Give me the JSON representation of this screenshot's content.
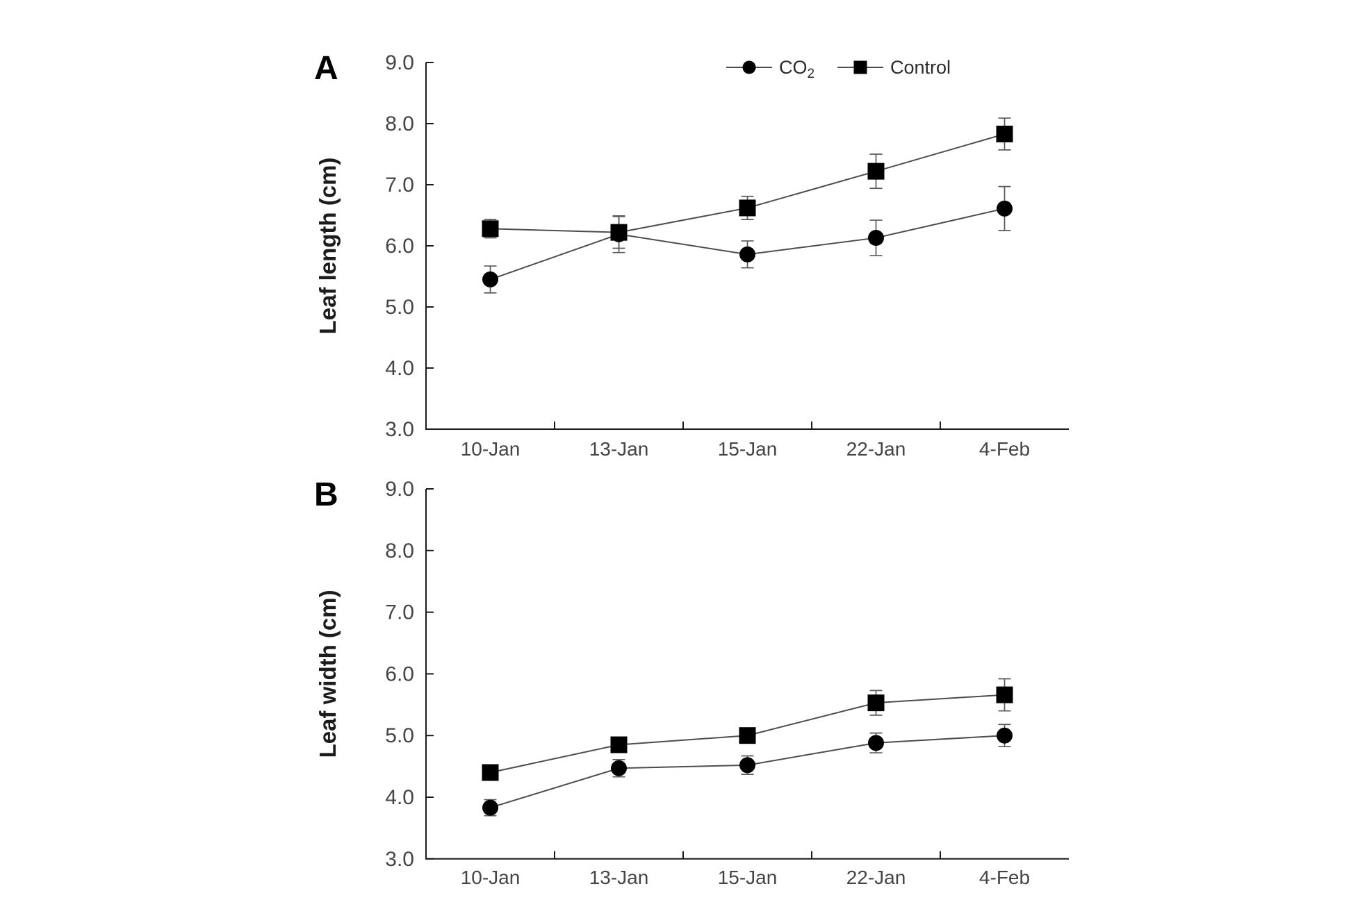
{
  "figure": {
    "background": "#ffffff",
    "axis_color": "#1a1a1a",
    "tick_text_color": "#454545",
    "label_text_color": "#1c1c1c",
    "series_line_color": "#4d4d4d",
    "marker_color": "#000000",
    "error_bar_color": "#595959"
  },
  "chart_data": [
    {
      "type": "line",
      "panel_label": "A",
      "ylabel": "Leaf length (cm)",
      "xlabel": "",
      "categories": [
        "10-Jan",
        "13-Jan",
        "15-Jan",
        "22-Jan",
        "4-Feb"
      ],
      "ylim": [
        3.0,
        9.0
      ],
      "ytick_step": 1.0,
      "ytick_labels": [
        "3.0",
        "4.0",
        "5.0",
        "6.0",
        "7.0",
        "8.0",
        "9.0"
      ],
      "grid": false,
      "legend": {
        "position": "top-inside",
        "entries": [
          {
            "text": "CO",
            "subscript": "2",
            "marker": "circle"
          },
          {
            "text": "Control",
            "subscript": "",
            "marker": "square"
          }
        ]
      },
      "series": [
        {
          "name": "CO2",
          "marker": "circle",
          "values": [
            5.45,
            6.19,
            5.86,
            6.13,
            6.61
          ],
          "errors": [
            0.22,
            0.3,
            0.22,
            0.29,
            0.36
          ]
        },
        {
          "name": "Control",
          "marker": "square",
          "values": [
            6.28,
            6.22,
            6.62,
            7.22,
            7.83
          ],
          "errors": [
            0.15,
            0.26,
            0.19,
            0.28,
            0.26
          ]
        }
      ]
    },
    {
      "type": "line",
      "panel_label": "B",
      "ylabel": "Leaf width (cm)",
      "xlabel": "",
      "categories": [
        "10-Jan",
        "13-Jan",
        "15-Jan",
        "22-Jan",
        "4-Feb"
      ],
      "ylim": [
        3.0,
        9.0
      ],
      "ytick_step": 1.0,
      "ytick_labels": [
        "3.0",
        "4.0",
        "5.0",
        "6.0",
        "7.0",
        "8.0",
        "9.0"
      ],
      "grid": false,
      "legend": null,
      "series": [
        {
          "name": "CO2",
          "marker": "circle",
          "values": [
            3.83,
            4.47,
            4.52,
            4.88,
            5.0
          ],
          "errors": [
            0.13,
            0.14,
            0.15,
            0.16,
            0.18
          ]
        },
        {
          "name": "Control",
          "marker": "square",
          "values": [
            4.4,
            4.85,
            5.0,
            5.53,
            5.66
          ],
          "errors": [
            0.06,
            0.06,
            0.06,
            0.2,
            0.26
          ]
        }
      ]
    }
  ]
}
